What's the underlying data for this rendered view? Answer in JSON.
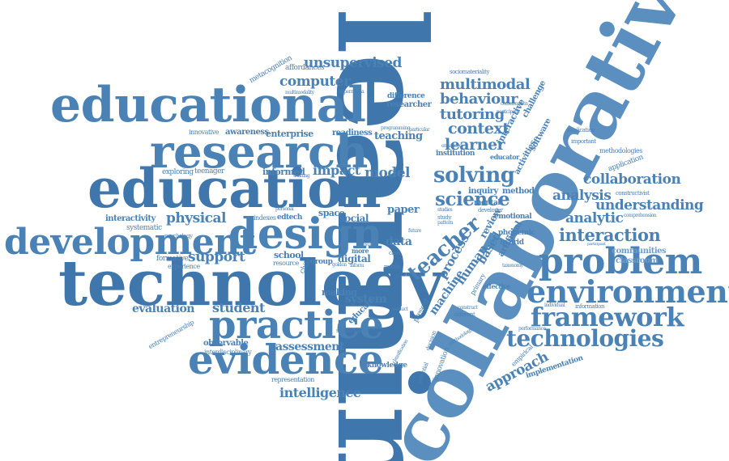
{
  "words": {
    "learning": "learning",
    "collaborative": "collaborative",
    "technology": "technology",
    "educational": "educational",
    "education": "education",
    "research": "research",
    "design": "design",
    "development": "development",
    "practice": "practice",
    "evidence": "evidence",
    "problem": "problem",
    "environment": "environment",
    "framework": "framework",
    "technologies": "technologies",
    "solving": "solving",
    "science": "science",
    "teacher": "teacher",
    "interaction": "interaction",
    "collaboration": "collaboration",
    "understanding": "understanding",
    "analysis": "analysis",
    "analytic": "analytic",
    "multimodal": "multimodal",
    "behaviour": "behaviour",
    "tutoring": "tutoring",
    "context": "context",
    "learner": "learner",
    "unsupervised": "unsupervised",
    "computer": "computer",
    "enterprise": "enterprise",
    "awareness": "awareness",
    "readiness": "readiness",
    "teaching": "teaching",
    "model": "model",
    "impact": "impact",
    "informed": "informed",
    "physical": "physical",
    "interactivity": "interactivity",
    "support": "support",
    "student": "student",
    "evaluation": "evaluation",
    "assessment": "assessment",
    "intelligence": "intelligence",
    "knowledge": "knowledge",
    "system": "system",
    "data": "data",
    "paper": "paper",
    "digital": "digital",
    "social": "social",
    "school": "school",
    "human": "human",
    "machine": "machine",
    "process": "process",
    "based": "based",
    "review": "review",
    "artificial": "artificial",
    "approach": "approach",
    "implementation": "implementation",
    "classroom": "classroom",
    "communities": "communities",
    "application": "application",
    "methodologies": "methodologies",
    "inquiry": "inquiry",
    "method": "method",
    "mental": "mental",
    "emotional": "emotional",
    "hybrid": "hybrid",
    "effective": "effective",
    "primary": "primary",
    "innovation": "innovation",
    "educate": "educate",
    "making": "making",
    "space": "space",
    "edtech": "edtech",
    "indexes": "indexes",
    "exploring": "exploring",
    "teenager": "teenager",
    "formative": "formative",
    "experience": "experience",
    "systematic": "systematic",
    "observable": "observable",
    "interdisciplinary": "interdisciplinary",
    "representation": "representation",
    "entrepreneurship": "entrepreneurship",
    "metacognition": "metacognition",
    "affordances": "affordances",
    "interactive": "interactive",
    "challenge": "challenge",
    "software": "software",
    "activities": "activities",
    "educator": "educator",
    "institution": "institution",
    "difference": "difference",
    "researcher": "researcher",
    "innovative": "innovative",
    "sociomateriality": "sociomateriality",
    "constructivist": "constructivist",
    "phonemic": "phonemic",
    "information": "information",
    "individual": "individual",
    "empirical": "empirical",
    "case": "case",
    "mobile": "mobile",
    "present": "present",
    "different": "different",
    "study": "study",
    "pattern": "pattern",
    "group": "group",
    "resource": "resource",
    "child": "child",
    "more": "more",
    "supported": "supported",
    "product": "product",
    "psychology": "psychology",
    "decision": "decision",
    "potential": "potential",
    "multimodality": "multimodality",
    "hypermedia": "hypermedia",
    "implication": "implication",
    "important": "important",
    "comprehension": "comprehension",
    "personal": "personal",
    "training": "training",
    "programming": "programming",
    "particular": "particular",
    "enhanced": "enhanced",
    "studies": "studies",
    "developer": "developer",
    "consumption": "consumption",
    "participant": "participant",
    "methodology": "methodology",
    "taxonomy": "taxonomy",
    "performance": "performance",
    "classification": "classification",
    "golden": "golden",
    "inform": "inform",
    "result": "result",
    "future": "future",
    "construct": "construct"
  }
}
